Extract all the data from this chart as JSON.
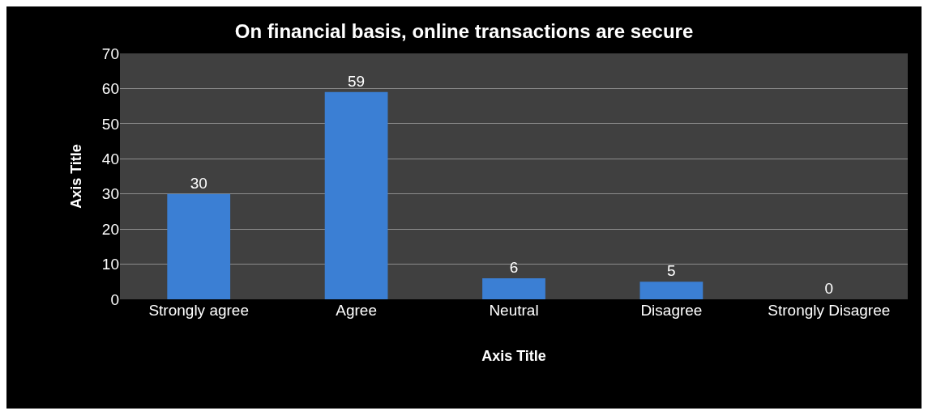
{
  "chart_data": {
    "type": "bar",
    "title": "On financial basis, online transactions are secure",
    "xlabel": "Axis Title",
    "ylabel": "Axis Title",
    "categories": [
      "Strongly agree",
      "Agree",
      "Neutral",
      "Disagree",
      "Strongly Disagree"
    ],
    "values": [
      30,
      59,
      6,
      5,
      0
    ],
    "color": "#3b7fd4",
    "ylim": [
      0,
      70
    ],
    "yticks": [
      0,
      10,
      20,
      30,
      40,
      50,
      60,
      70
    ],
    "grid": "y",
    "data_labels": true,
    "legend": false
  }
}
